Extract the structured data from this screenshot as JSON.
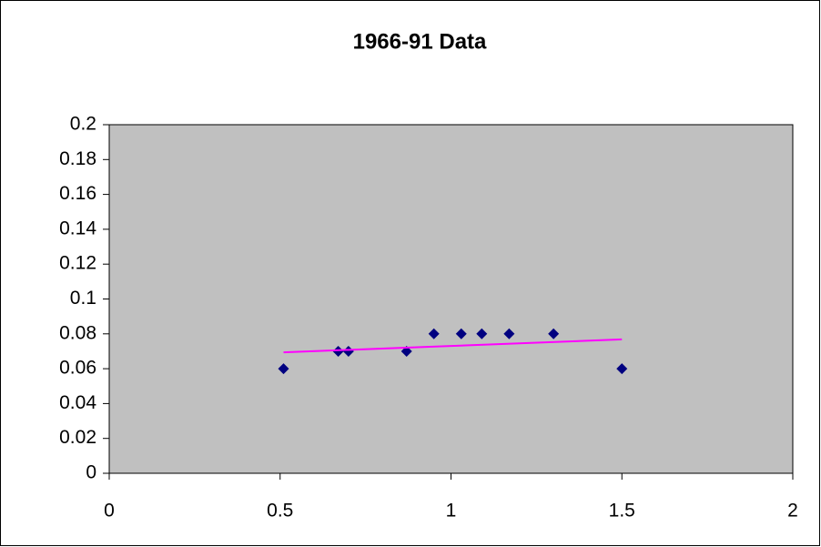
{
  "chart_data": {
    "type": "scatter",
    "title": "1966-91 Data",
    "series": [
      {
        "color": "#000080",
        "x": [
          0.51,
          0.67,
          0.7,
          0.87,
          0.95,
          1.03,
          1.09,
          1.17,
          1.3,
          1.5
        ],
        "values": [
          0.06,
          0.07,
          0.07,
          0.07,
          0.08,
          0.08,
          0.08,
          0.08,
          0.08,
          0.06
        ]
      },
      {
        "type": "line",
        "color": "#ff00ff",
        "x": [
          0.51,
          1.5
        ],
        "values": [
          0.0694,
          0.0768
        ]
      }
    ],
    "xlim": [
      0,
      2
    ],
    "xticks": [
      0,
      0.5,
      1,
      1.5,
      2
    ],
    "ylim": [
      0,
      0.2
    ],
    "yticks": [
      0,
      0.02,
      0.04,
      0.06,
      0.08,
      0.1,
      0.12,
      0.14,
      0.16,
      0.18,
      0.2
    ],
    "plot_background": "#c0c0c0"
  }
}
